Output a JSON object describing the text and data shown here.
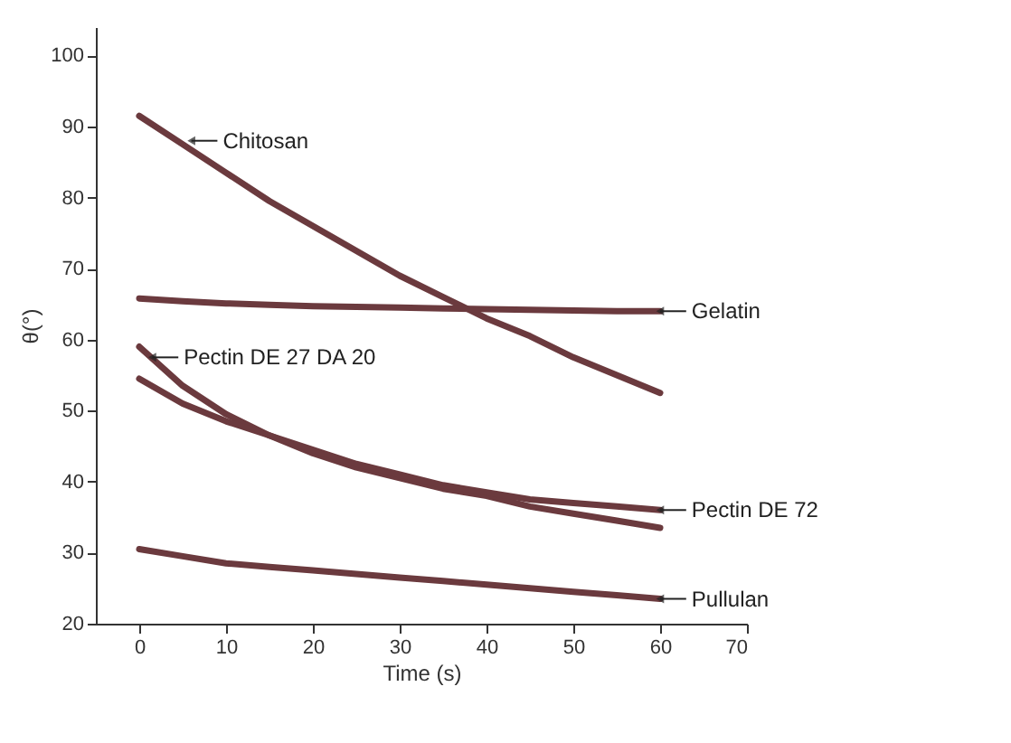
{
  "chart_data": {
    "type": "line",
    "xlabel": "Time (s)",
    "ylabel": "θ(°)",
    "x": [
      0,
      5,
      10,
      15,
      20,
      25,
      30,
      35,
      40,
      45,
      50,
      55,
      60
    ],
    "series": [
      {
        "color": "#6b3a3e",
        "values": [
          91.5,
          87.5,
          83.5,
          79.5,
          76,
          72.5,
          69,
          66,
          63,
          60.5,
          57.5,
          55,
          52.5
        ]
      },
      {
        "color": "#6b3a3e",
        "values": [
          65.8,
          65.4,
          65.1,
          64.9,
          64.7,
          64.6,
          64.5,
          64.4,
          64.3,
          64.2,
          64.1,
          64.0,
          64.0
        ]
      },
      {
        "color": "#6b3a3e",
        "values": [
          59,
          53.5,
          49.5,
          46.5,
          44,
          42,
          40.5,
          39,
          38,
          36.5,
          35.5,
          34.5,
          33.5
        ]
      },
      {
        "color": "#6b3a3e",
        "values": [
          54.5,
          51,
          48.5,
          46.5,
          44.5,
          42.5,
          41,
          39.5,
          38.5,
          37.5,
          37,
          36.5,
          36
        ]
      },
      {
        "color": "#6b3a3e",
        "values": [
          30.5,
          29.5,
          28.5,
          28,
          27.5,
          27,
          26.5,
          26,
          25.5,
          25,
          24.5,
          24,
          23.5
        ]
      }
    ],
    "annotations": [
      {
        "text": "Chitosan",
        "x": 6,
        "y": 88
      },
      {
        "text": "Gelatin",
        "x": 60,
        "y": 64
      },
      {
        "text": "Pectin DE 27 DA 20",
        "x": 1.5,
        "y": 57.5
      },
      {
        "text": "Pectin DE 72",
        "x": 60,
        "y": 36
      },
      {
        "text": "Pullulan",
        "x": 60,
        "y": 23.5
      }
    ],
    "xlim": [
      -5,
      70
    ],
    "xticks": [
      0,
      10,
      20,
      30,
      40,
      50,
      60,
      70
    ],
    "ylim": [
      20,
      104
    ],
    "yticks": [
      20,
      30,
      40,
      50,
      60,
      70,
      80,
      90,
      100
    ],
    "grid": false,
    "marker": "none",
    "line_style": "solid"
  }
}
